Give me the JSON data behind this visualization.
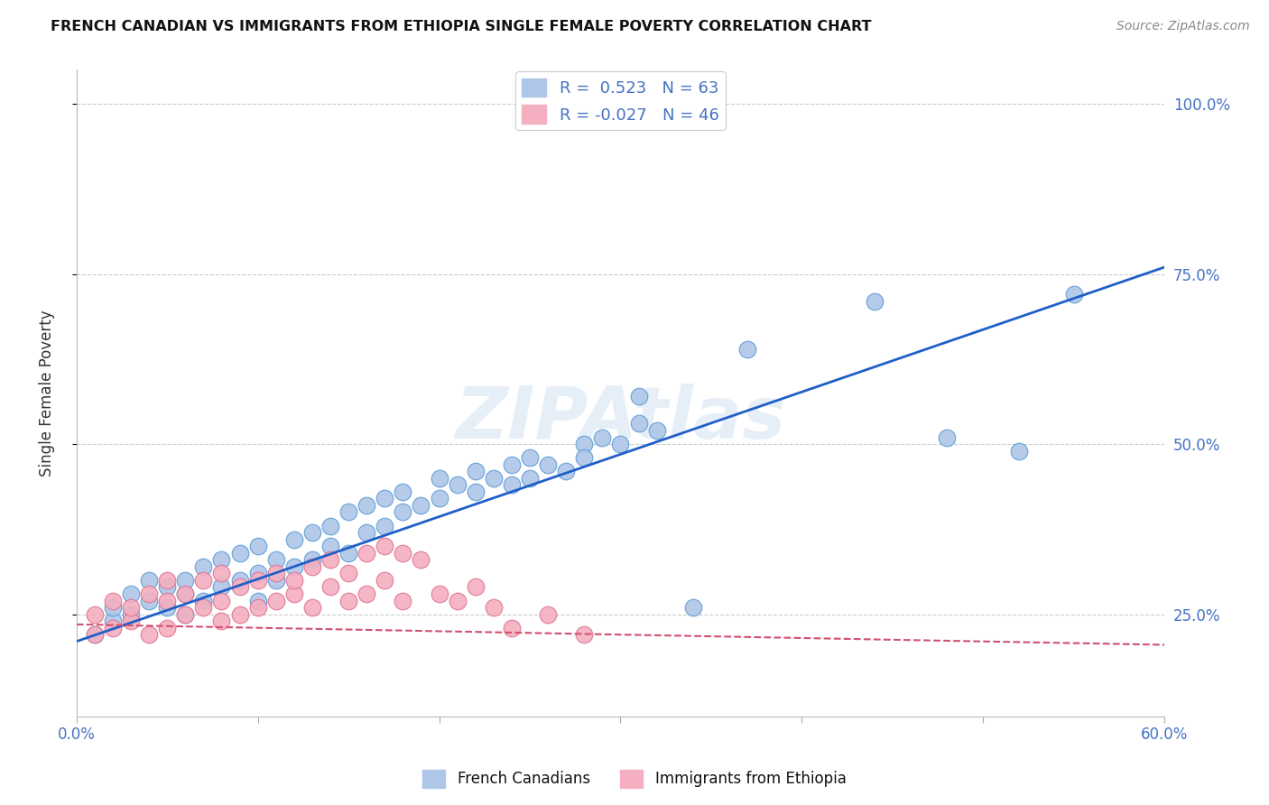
{
  "title": "FRENCH CANADIAN VS IMMIGRANTS FROM ETHIOPIA SINGLE FEMALE POVERTY CORRELATION CHART",
  "source": "Source: ZipAtlas.com",
  "ylabel": "Single Female Poverty",
  "xlim": [
    0.0,
    0.6
  ],
  "ylim": [
    0.1,
    1.05
  ],
  "ytick_positions": [
    0.25,
    0.5,
    0.75,
    1.0
  ],
  "ytick_labels": [
    "25.0%",
    "50.0%",
    "75.0%",
    "100.0%"
  ],
  "xtick_positions": [
    0.0,
    0.1,
    0.2,
    0.3,
    0.4,
    0.5,
    0.6
  ],
  "xtick_labels": [
    "0.0%",
    "",
    "",
    "",
    "",
    "",
    "60.0%"
  ],
  "blue_R": 0.523,
  "blue_N": 63,
  "pink_R": -0.027,
  "pink_N": 46,
  "blue_color": "#aec6e8",
  "pink_color": "#f4afc0",
  "blue_edge_color": "#5b9bd5",
  "pink_edge_color": "#e07090",
  "blue_line_color": "#1f5fc8",
  "pink_line_color": "#d05070",
  "watermark": "ZIPAtlas",
  "legend_label_blue": "French Canadians",
  "legend_label_pink": "Immigrants from Ethiopia",
  "blue_line_x": [
    0.0,
    0.6
  ],
  "blue_line_y": [
    0.21,
    0.76
  ],
  "pink_line_x": [
    0.0,
    0.6
  ],
  "pink_line_y": [
    0.235,
    0.205
  ],
  "blue_scatter_x": [
    0.01,
    0.02,
    0.02,
    0.03,
    0.03,
    0.04,
    0.04,
    0.05,
    0.05,
    0.06,
    0.06,
    0.06,
    0.07,
    0.07,
    0.08,
    0.08,
    0.09,
    0.09,
    0.1,
    0.1,
    0.1,
    0.11,
    0.11,
    0.12,
    0.12,
    0.13,
    0.13,
    0.14,
    0.14,
    0.15,
    0.15,
    0.16,
    0.16,
    0.17,
    0.17,
    0.18,
    0.18,
    0.19,
    0.2,
    0.2,
    0.21,
    0.22,
    0.22,
    0.23,
    0.24,
    0.24,
    0.25,
    0.25,
    0.26,
    0.27,
    0.28,
    0.28,
    0.29,
    0.3,
    0.31,
    0.32,
    0.34,
    0.37,
    0.44,
    0.48,
    0.52,
    0.55,
    0.31
  ],
  "blue_scatter_y": [
    0.22,
    0.24,
    0.26,
    0.25,
    0.28,
    0.27,
    0.3,
    0.26,
    0.29,
    0.25,
    0.28,
    0.3,
    0.27,
    0.32,
    0.29,
    0.33,
    0.3,
    0.34,
    0.27,
    0.31,
    0.35,
    0.3,
    0.33,
    0.32,
    0.36,
    0.33,
    0.37,
    0.35,
    0.38,
    0.34,
    0.4,
    0.37,
    0.41,
    0.38,
    0.42,
    0.4,
    0.43,
    0.41,
    0.42,
    0.45,
    0.44,
    0.43,
    0.46,
    0.45,
    0.44,
    0.47,
    0.45,
    0.48,
    0.47,
    0.46,
    0.5,
    0.48,
    0.51,
    0.5,
    0.53,
    0.52,
    0.26,
    0.64,
    0.71,
    0.51,
    0.49,
    0.72,
    0.57
  ],
  "pink_scatter_x": [
    0.01,
    0.01,
    0.02,
    0.02,
    0.03,
    0.03,
    0.04,
    0.04,
    0.05,
    0.05,
    0.05,
    0.06,
    0.06,
    0.07,
    0.07,
    0.08,
    0.08,
    0.08,
    0.09,
    0.09,
    0.1,
    0.1,
    0.11,
    0.11,
    0.12,
    0.12,
    0.13,
    0.13,
    0.14,
    0.14,
    0.15,
    0.15,
    0.16,
    0.16,
    0.17,
    0.17,
    0.18,
    0.18,
    0.19,
    0.2,
    0.21,
    0.22,
    0.23,
    0.24,
    0.26,
    0.28
  ],
  "pink_scatter_y": [
    0.22,
    0.25,
    0.23,
    0.27,
    0.24,
    0.26,
    0.22,
    0.28,
    0.23,
    0.27,
    0.3,
    0.25,
    0.28,
    0.26,
    0.3,
    0.24,
    0.27,
    0.31,
    0.25,
    0.29,
    0.26,
    0.3,
    0.27,
    0.31,
    0.28,
    0.3,
    0.26,
    0.32,
    0.29,
    0.33,
    0.27,
    0.31,
    0.34,
    0.28,
    0.35,
    0.3,
    0.34,
    0.27,
    0.33,
    0.28,
    0.27,
    0.29,
    0.26,
    0.23,
    0.25,
    0.22
  ]
}
